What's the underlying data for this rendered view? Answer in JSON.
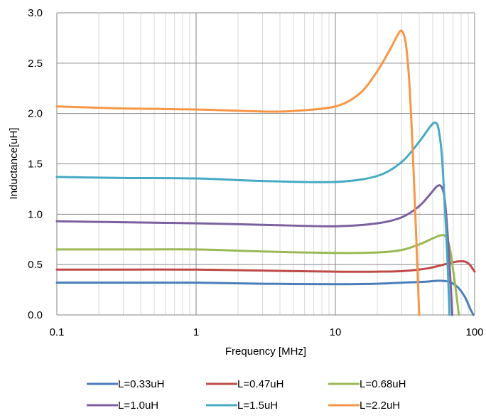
{
  "chart_data": {
    "type": "line",
    "title": "",
    "xlabel": "Frequency [MHz]",
    "ylabel": "Inductance[uH]",
    "xscale": "log",
    "xlim": [
      0.1,
      100
    ],
    "ylim": [
      0,
      3.0
    ],
    "x_ticks": [
      0.1,
      1,
      10,
      100
    ],
    "x_tick_labels": [
      "0.1",
      "1",
      "10",
      "100"
    ],
    "y_ticks": [
      0,
      0.5,
      1.0,
      1.5,
      2.0,
      2.5,
      3.0
    ],
    "y_tick_labels": [
      "0.0",
      "0.5",
      "1.0",
      "1.5",
      "2.0",
      "2.5",
      "3.0"
    ],
    "grid": true,
    "legend_position": "bottom",
    "series": [
      {
        "name": "L=0.33uH",
        "color": "#4a7ebb",
        "points": [
          [
            0.1,
            0.32
          ],
          [
            0.3,
            0.32
          ],
          [
            1,
            0.32
          ],
          [
            3,
            0.31
          ],
          [
            10,
            0.305
          ],
          [
            20,
            0.31
          ],
          [
            30,
            0.32
          ],
          [
            45,
            0.33
          ],
          [
            55,
            0.34
          ],
          [
            65,
            0.33
          ],
          [
            75,
            0.28
          ],
          [
            85,
            0.18
          ],
          [
            93,
            0.06
          ],
          [
            98,
            0.0
          ]
        ]
      },
      {
        "name": "L=0.47uH",
        "color": "#be4b48",
        "points": [
          [
            0.1,
            0.45
          ],
          [
            0.3,
            0.45
          ],
          [
            1,
            0.45
          ],
          [
            3,
            0.44
          ],
          [
            10,
            0.43
          ],
          [
            20,
            0.43
          ],
          [
            30,
            0.435
          ],
          [
            45,
            0.46
          ],
          [
            60,
            0.5
          ],
          [
            75,
            0.53
          ],
          [
            85,
            0.53
          ],
          [
            92,
            0.5
          ],
          [
            100,
            0.43
          ]
        ]
      },
      {
        "name": "L=0.68uH",
        "color": "#98b954",
        "points": [
          [
            0.1,
            0.65
          ],
          [
            0.3,
            0.65
          ],
          [
            1,
            0.65
          ],
          [
            3,
            0.63
          ],
          [
            10,
            0.615
          ],
          [
            20,
            0.62
          ],
          [
            30,
            0.645
          ],
          [
            40,
            0.7
          ],
          [
            50,
            0.76
          ],
          [
            57,
            0.79
          ],
          [
            62,
            0.78
          ],
          [
            66,
            0.68
          ],
          [
            70,
            0.45
          ],
          [
            74,
            0.2
          ],
          [
            77,
            0.0
          ]
        ]
      },
      {
        "name": "L=1.0uH",
        "color": "#7d60a0",
        "points": [
          [
            0.1,
            0.93
          ],
          [
            0.3,
            0.92
          ],
          [
            1,
            0.91
          ],
          [
            3,
            0.895
          ],
          [
            10,
            0.88
          ],
          [
            20,
            0.91
          ],
          [
            30,
            0.97
          ],
          [
            40,
            1.08
          ],
          [
            48,
            1.2
          ],
          [
            54,
            1.28
          ],
          [
            58,
            1.27
          ],
          [
            61,
            1.15
          ],
          [
            64,
            0.8
          ],
          [
            67,
            0.35
          ],
          [
            69,
            0.0
          ]
        ]
      },
      {
        "name": "L=1.5uH",
        "color": "#46aac5",
        "points": [
          [
            0.1,
            1.37
          ],
          [
            0.3,
            1.36
          ],
          [
            1,
            1.355
          ],
          [
            3,
            1.33
          ],
          [
            10,
            1.32
          ],
          [
            20,
            1.38
          ],
          [
            30,
            1.52
          ],
          [
            40,
            1.72
          ],
          [
            48,
            1.87
          ],
          [
            52,
            1.91
          ],
          [
            55,
            1.85
          ],
          [
            58,
            1.6
          ],
          [
            61,
            1.1
          ],
          [
            64,
            0.5
          ],
          [
            66,
            0.0
          ]
        ]
      },
      {
        "name": "L=2.2uH",
        "color": "#f79646",
        "points": [
          [
            0.1,
            2.07
          ],
          [
            0.3,
            2.05
          ],
          [
            1,
            2.04
          ],
          [
            3,
            2.02
          ],
          [
            5,
            2.025
          ],
          [
            10,
            2.07
          ],
          [
            15,
            2.2
          ],
          [
            20,
            2.42
          ],
          [
            25,
            2.65
          ],
          [
            28,
            2.78
          ],
          [
            30,
            2.82
          ],
          [
            32,
            2.7
          ],
          [
            34,
            2.3
          ],
          [
            36,
            1.6
          ],
          [
            38,
            0.8
          ],
          [
            40,
            0.0
          ]
        ]
      }
    ]
  }
}
